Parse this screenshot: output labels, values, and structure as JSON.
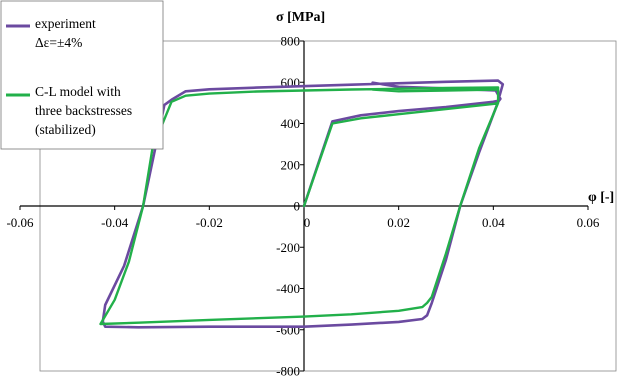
{
  "chart_data": {
    "type": "line",
    "xlabel": "φ [-]",
    "ylabel": "σ [MPa]",
    "xlim": [
      -0.06,
      0.06
    ],
    "ylim": [
      -800,
      800
    ],
    "x_ticks": [
      "-0.06",
      "-0.04",
      "-0.02",
      "0",
      "0.02",
      "0.04",
      "0.06"
    ],
    "y_ticks": [
      "800",
      "600",
      "400",
      "200",
      "0",
      "-200",
      "-400",
      "-600",
      "-800"
    ],
    "grid": false,
    "legend_position": "top-left",
    "colors": {
      "experiment": "#6b4aa0",
      "model": "#22b04a"
    },
    "series": [
      {
        "name": "experiment\nΔε=±4%",
        "points": [
          [
            0,
            0
          ],
          [
            0.006,
            410
          ],
          [
            0.012,
            440
          ],
          [
            0.02,
            460
          ],
          [
            0.03,
            480
          ],
          [
            0.04,
            505
          ],
          [
            0.041,
            510
          ],
          [
            0.042,
            590
          ],
          [
            0.041,
            608
          ],
          [
            0.03,
            602
          ],
          [
            0.01,
            588
          ],
          [
            -0.01,
            574
          ],
          [
            -0.02,
            566
          ],
          [
            -0.025,
            556
          ],
          [
            -0.028,
            515
          ],
          [
            -0.0295,
            490
          ],
          [
            -0.034,
            0
          ],
          [
            -0.038,
            -290
          ],
          [
            -0.042,
            -480
          ],
          [
            -0.0425,
            -560
          ],
          [
            -0.042,
            -585
          ],
          [
            -0.035,
            -588
          ],
          [
            -0.02,
            -585
          ],
          [
            0,
            -585
          ],
          [
            0.01,
            -575
          ],
          [
            0.02,
            -562
          ],
          [
            0.025,
            -548
          ],
          [
            0.026,
            -530
          ],
          [
            0.027,
            -470
          ],
          [
            0.03,
            -260
          ],
          [
            0.033,
            0
          ],
          [
            0.037,
            260
          ],
          [
            0.041,
            505
          ],
          [
            0.0415,
            520
          ],
          [
            0.0405,
            560
          ],
          [
            0.03,
            570
          ],
          [
            0.02,
            578
          ],
          [
            0.0145,
            598
          ]
        ]
      },
      {
        "name": "C-L model with\nthree backstresses\n(stabilized)",
        "points": [
          [
            0,
            0
          ],
          [
            0.006,
            400
          ],
          [
            0.012,
            425
          ],
          [
            0.02,
            445
          ],
          [
            0.03,
            470
          ],
          [
            0.04,
            495
          ],
          [
            0.041,
            500
          ],
          [
            0.041,
            575
          ],
          [
            0.03,
            572
          ],
          [
            0.01,
            565
          ],
          [
            -0.01,
            555
          ],
          [
            -0.02,
            545
          ],
          [
            -0.025,
            535
          ],
          [
            -0.028,
            505
          ],
          [
            -0.032,
            280
          ],
          [
            -0.034,
            0
          ],
          [
            -0.037,
            -270
          ],
          [
            -0.04,
            -455
          ],
          [
            -0.043,
            -572
          ],
          [
            -0.035,
            -566
          ],
          [
            -0.02,
            -552
          ],
          [
            0,
            -536
          ],
          [
            0.01,
            -525
          ],
          [
            0.02,
            -508
          ],
          [
            0.025,
            -490
          ],
          [
            0.026,
            -470
          ],
          [
            0.027,
            -440
          ],
          [
            0.03,
            -230
          ],
          [
            0.033,
            0
          ],
          [
            0.037,
            280
          ],
          [
            0.041,
            500
          ],
          [
            0.041,
            565
          ],
          [
            0.03,
            560
          ],
          [
            0.02,
            556
          ],
          [
            0.0145,
            565
          ]
        ]
      }
    ]
  }
}
